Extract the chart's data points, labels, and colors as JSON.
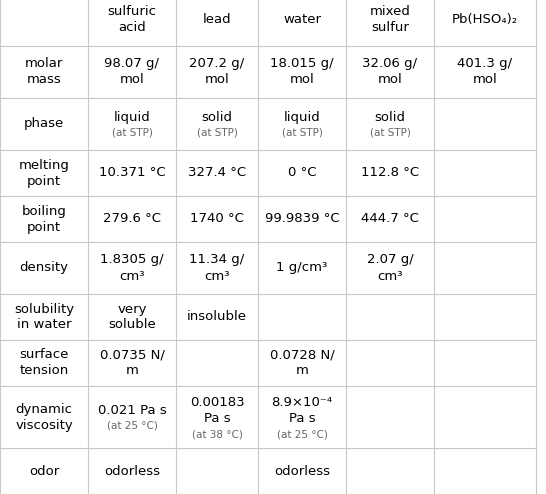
{
  "col_headers": [
    "",
    "sulfuric\nacid",
    "lead",
    "water",
    "mixed\nsulfur",
    "Pb(HSO₄)₂"
  ],
  "rows": [
    {
      "label": "molar\nmass",
      "cells": [
        {
          "main": "98.07 g/\nmol",
          "sub": ""
        },
        {
          "main": "207.2 g/\nmol",
          "sub": ""
        },
        {
          "main": "18.015 g/\nmol",
          "sub": ""
        },
        {
          "main": "32.06 g/\nmol",
          "sub": ""
        },
        {
          "main": "401.3 g/\nmol",
          "sub": ""
        }
      ]
    },
    {
      "label": "phase",
      "cells": [
        {
          "main": "liquid",
          "sub": "(at STP)"
        },
        {
          "main": "solid",
          "sub": "(at STP)"
        },
        {
          "main": "liquid",
          "sub": "(at STP)"
        },
        {
          "main": "solid",
          "sub": "(at STP)"
        },
        {
          "main": "",
          "sub": ""
        }
      ]
    },
    {
      "label": "melting\npoint",
      "cells": [
        {
          "main": "10.371 °C",
          "sub": ""
        },
        {
          "main": "327.4 °C",
          "sub": ""
        },
        {
          "main": "0 °C",
          "sub": ""
        },
        {
          "main": "112.8 °C",
          "sub": ""
        },
        {
          "main": "",
          "sub": ""
        }
      ]
    },
    {
      "label": "boiling\npoint",
      "cells": [
        {
          "main": "279.6 °C",
          "sub": ""
        },
        {
          "main": "1740 °C",
          "sub": ""
        },
        {
          "main": "99.9839 °C",
          "sub": ""
        },
        {
          "main": "444.7 °C",
          "sub": ""
        },
        {
          "main": "",
          "sub": ""
        }
      ]
    },
    {
      "label": "density",
      "cells": [
        {
          "main": "1.8305 g/\ncm³",
          "sub": ""
        },
        {
          "main": "11.34 g/\ncm³",
          "sub": ""
        },
        {
          "main": "1 g/cm³",
          "sub": ""
        },
        {
          "main": "2.07 g/\ncm³",
          "sub": ""
        },
        {
          "main": "",
          "sub": ""
        }
      ]
    },
    {
      "label": "solubility\nin water",
      "cells": [
        {
          "main": "very\nsoluble",
          "sub": ""
        },
        {
          "main": "insoluble",
          "sub": ""
        },
        {
          "main": "",
          "sub": ""
        },
        {
          "main": "",
          "sub": ""
        },
        {
          "main": "",
          "sub": ""
        }
      ]
    },
    {
      "label": "surface\ntension",
      "cells": [
        {
          "main": "0.0735 N/\nm",
          "sub": ""
        },
        {
          "main": "",
          "sub": ""
        },
        {
          "main": "0.0728 N/\nm",
          "sub": ""
        },
        {
          "main": "",
          "sub": ""
        },
        {
          "main": "",
          "sub": ""
        }
      ]
    },
    {
      "label": "dynamic\nviscosity",
      "cells": [
        {
          "main": "0.021 Pa s",
          "sub": "(at 25 °C)"
        },
        {
          "main": "0.00183\nPa s",
          "sub": "(at 38 °C)"
        },
        {
          "main": "8.9×10⁻⁴\nPa s",
          "sub": "(at 25 °C)"
        },
        {
          "main": "",
          "sub": ""
        },
        {
          "main": "",
          "sub": ""
        }
      ]
    },
    {
      "label": "odor",
      "cells": [
        {
          "main": "odorless",
          "sub": ""
        },
        {
          "main": "",
          "sub": ""
        },
        {
          "main": "odorless",
          "sub": ""
        },
        {
          "main": "",
          "sub": ""
        },
        {
          "main": "",
          "sub": ""
        }
      ]
    }
  ],
  "bg_color": "#ffffff",
  "line_color": "#c8c8c8",
  "text_color": "#000000",
  "sub_text_color": "#666666",
  "font_size": 9.5,
  "sub_font_size": 7.5,
  "header_font_size": 9.5
}
